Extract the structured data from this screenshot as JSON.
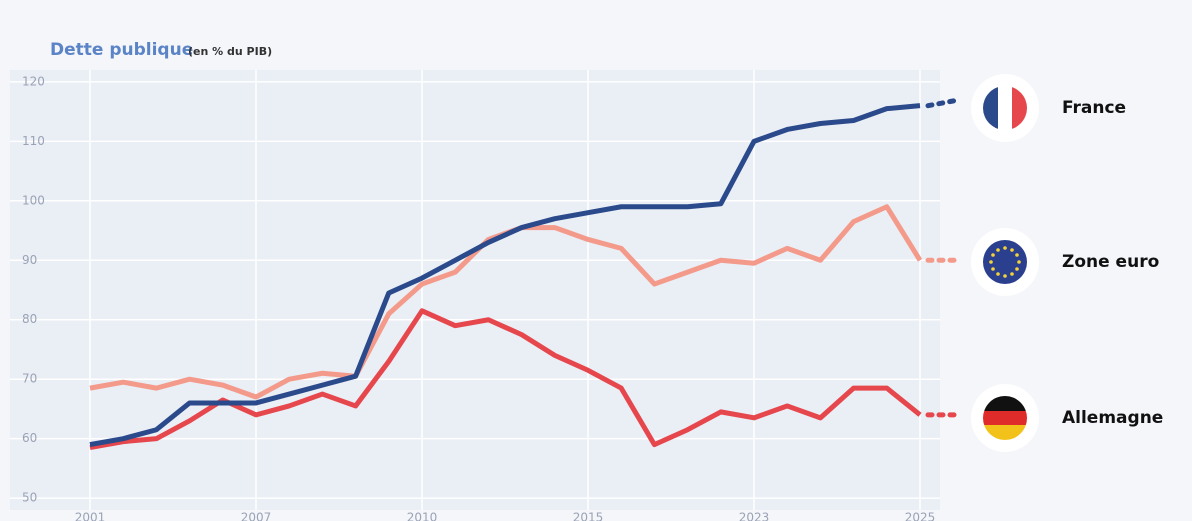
{
  "chart_data": {
    "type": "line",
    "title": "Dette publique",
    "subtitle": "(en % du PIB)",
    "categories": [
      "2001",
      null,
      null,
      null,
      null,
      "2007",
      null,
      null,
      null,
      null,
      "2010",
      null,
      null,
      null,
      null,
      "2015",
      null,
      null,
      null,
      null,
      "2023",
      null,
      null,
      null,
      null,
      "2025"
    ],
    "series": [
      {
        "name": "France",
        "color": "#2b4a8b",
        "values": [
          59,
          60,
          61.5,
          66,
          66,
          66,
          67.5,
          69,
          70.5,
          84.5,
          87,
          90,
          93,
          95.5,
          97,
          98,
          99,
          99,
          99,
          99.5,
          110,
          112,
          113,
          113.5,
          115.5,
          116
        ]
      },
      {
        "name": "Zone euro",
        "color": "#f49a8b",
        "values": [
          68.5,
          69.5,
          68.5,
          70,
          69,
          67,
          70,
          71,
          70.5,
          81,
          86,
          88,
          93.5,
          95.5,
          95.5,
          93.5,
          92,
          86,
          88,
          90,
          89.5,
          92,
          90,
          96.5,
          99,
          90
        ]
      },
      {
        "name": "Allemagne",
        "color": "#e6474d",
        "values": [
          58.5,
          59.5,
          60,
          63,
          66.5,
          64,
          65.5,
          67.5,
          65.5,
          73,
          81.5,
          79,
          80,
          77.5,
          74,
          71.5,
          68.5,
          59,
          61.5,
          64.5,
          63.5,
          65.5,
          63.5,
          68.5,
          68.5,
          64
        ]
      }
    ],
    "ylim": [
      48,
      122
    ],
    "yticks": [
      50,
      60,
      70,
      80,
      90,
      100,
      110,
      120
    ],
    "grid": true
  }
}
